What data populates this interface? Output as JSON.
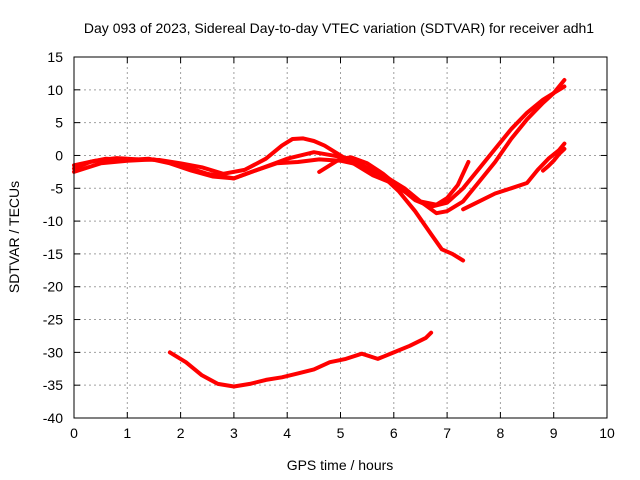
{
  "chart_data": {
    "type": "line",
    "title": "Day 093 of 2023, Sidereal Day-to-day VTEC variation (SDTVAR) for receiver adh1",
    "xlabel": "GPS time / hours",
    "ylabel": "SDTVAR / TECUs",
    "xlim": [
      0,
      10
    ],
    "ylim": [
      -40,
      15
    ],
    "xticks": [
      "0",
      "1",
      "2",
      "3",
      "4",
      "5",
      "6",
      "7",
      "8",
      "9",
      "10"
    ],
    "yticks": [
      "15",
      "10",
      "5",
      "0",
      "-5",
      "-10",
      "-15",
      "-20",
      "-25",
      "-30",
      "-35",
      "-40"
    ],
    "grid": true,
    "color": "#ff0000",
    "series": [
      {
        "x": [
          0.0,
          0.3,
          0.6,
          1.0,
          1.4,
          1.8,
          2.2,
          2.6,
          3.0,
          3.4,
          3.8,
          4.2,
          4.6,
          5.0,
          5.4,
          5.8,
          6.1,
          6.4,
          6.7,
          6.9,
          7.1,
          7.3
        ],
        "y": [
          -2,
          -1,
          -0.5,
          -0.7,
          -0.5,
          -1.2,
          -2.3,
          -3.2,
          -3.5,
          -2.3,
          -1.2,
          -1.0,
          -0.6,
          -0.8,
          -1.5,
          -3.2,
          -5.5,
          -8.5,
          -12,
          -14.3,
          -15,
          -16
        ]
      },
      {
        "x": [
          0.0,
          0.4,
          0.8,
          1.2,
          1.6,
          2.0,
          2.4,
          2.8,
          3.2,
          3.6,
          3.9,
          4.1,
          4.3,
          4.5,
          4.7,
          5.0,
          5.3,
          5.6,
          5.9,
          6.2,
          6.5,
          6.8,
          7.0,
          7.2,
          7.4
        ],
        "y": [
          -1.5,
          -0.8,
          -0.4,
          -0.6,
          -0.7,
          -1.2,
          -1.8,
          -2.8,
          -2.2,
          -0.5,
          1.5,
          2.5,
          2.6,
          2.2,
          1.5,
          0,
          -1.5,
          -3.0,
          -4.0,
          -5.5,
          -7.0,
          -7.5,
          -6.5,
          -4.5,
          -1.0
        ]
      },
      {
        "x": [
          0.0,
          0.5,
          1.0,
          1.5,
          2.0,
          2.5,
          3.0,
          3.5,
          4.0,
          4.5,
          5.0,
          5.3,
          5.6,
          5.9,
          6.2,
          6.5,
          6.8,
          7.0,
          7.3,
          7.6,
          7.9,
          8.2,
          8.5,
          8.8,
          9.0,
          9.2
        ],
        "y": [
          -2.5,
          -1.2,
          -0.8,
          -0.6,
          -1.5,
          -2.8,
          -3.5,
          -2.0,
          -0.5,
          0.5,
          -0.2,
          -1.0,
          -2.3,
          -3.5,
          -5.0,
          -7.0,
          -8.8,
          -8.5,
          -7.0,
          -4.0,
          -1.0,
          2.5,
          5.5,
          8.0,
          9.5,
          11.5
        ]
      },
      {
        "x": [
          4.6,
          4.8,
          5.0,
          5.2,
          5.5,
          5.8,
          6.1,
          6.4,
          6.7,
          7.0,
          7.3,
          7.6,
          7.9,
          8.2,
          8.5,
          8.8,
          9.0,
          9.2
        ],
        "y": [
          -2.5,
          -1.5,
          -0.5,
          -0.3,
          -1.2,
          -2.8,
          -4.8,
          -6.8,
          -7.8,
          -7.2,
          -5.0,
          -2.0,
          1.0,
          4.0,
          6.5,
          8.5,
          9.5,
          10.5
        ]
      },
      {
        "x": [
          7.3,
          7.6,
          7.9,
          8.2,
          8.5,
          8.7,
          8.9,
          9.1,
          9.2
        ],
        "y": [
          -8.2,
          -7.0,
          -5.8,
          -5.0,
          -4.2,
          -2.2,
          -0.5,
          0.8,
          1.8
        ]
      },
      {
        "x": [
          8.8,
          8.9,
          9.0,
          9.1,
          9.2
        ],
        "y": [
          -2.3,
          -1.6,
          -0.8,
          0.2,
          1.0
        ]
      },
      {
        "x": [
          1.8,
          2.1,
          2.4,
          2.7,
          3.0,
          3.3,
          3.6,
          3.9,
          4.2,
          4.5,
          4.8,
          5.1,
          5.4,
          5.7,
          6.0,
          6.3,
          6.6,
          6.7
        ],
        "y": [
          -30,
          -31.5,
          -33.5,
          -34.8,
          -35.2,
          -34.8,
          -34.2,
          -33.8,
          -33.2,
          -32.6,
          -31.5,
          -31.0,
          -30.2,
          -31.0,
          -30.0,
          -29.0,
          -27.8,
          -27.0
        ]
      }
    ]
  }
}
